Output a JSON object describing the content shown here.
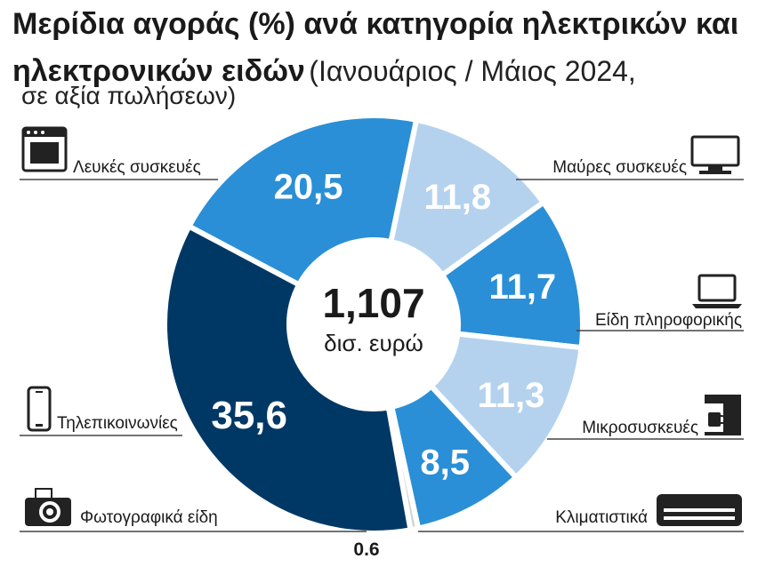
{
  "title": {
    "bold": "Μερίδια αγοράς (%) ανά κατηγορία ηλεκτρικών και ηλεκτρονικών ειδών",
    "light": "(Ιανουάριος / Μάιος 2024,",
    "line3": "σε αξία πωλήσεων)"
  },
  "center": {
    "value": "1,107",
    "unit": "δισ. ευρώ"
  },
  "colors": {
    "white_goods": "#2a8fd6",
    "brown_goods": "#b4d2ee",
    "it": "#2a8fd6",
    "small_appliances": "#b4d2ee",
    "air_conditioning": "#2a8fd6",
    "photo": "#d4d4d4",
    "telecom": "#003865"
  },
  "chart_data": {
    "type": "pie",
    "title": "Μερίδια αγοράς (%) ανά κατηγορία ηλεκτρικών και ηλεκτρονικών ειδών",
    "slices": [
      {
        "label": "Λευκές συσκευές",
        "value": 20.5,
        "value_label": "20,5",
        "icon": "oven-icon"
      },
      {
        "label": "Μαύρες συσκευές",
        "value": 11.8,
        "value_label": "11,8",
        "icon": "tv-icon"
      },
      {
        "label": "Είδη πληροφορικής",
        "value": 11.7,
        "value_label": "11,7",
        "icon": "laptop-icon"
      },
      {
        "label": "Μικροσυσκευές",
        "value": 11.3,
        "value_label": "11,3",
        "icon": "coffee-machine-icon"
      },
      {
        "label": "Κλιματιστικά",
        "value": 8.5,
        "value_label": "8,5",
        "icon": "air-conditioner-icon"
      },
      {
        "label": "Φωτογραφικά είδη",
        "value": 0.6,
        "value_label": "0.6",
        "icon": "camera-icon"
      },
      {
        "label": "Τηλεπικοινωνίες",
        "value": 35.6,
        "value_label": "35,6",
        "icon": "smartphone-icon"
      }
    ]
  }
}
